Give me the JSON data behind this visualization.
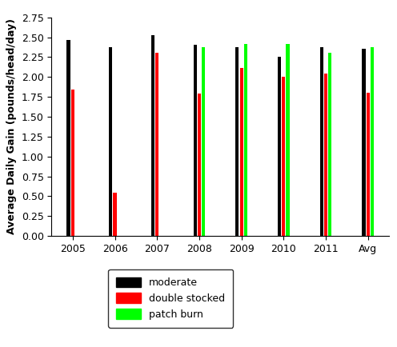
{
  "categories": [
    "2005",
    "2006",
    "2007",
    "2008",
    "2009",
    "2010",
    "2011",
    "Avg"
  ],
  "moderate": [
    2.47,
    2.37,
    2.53,
    2.41,
    2.37,
    2.25,
    2.37,
    2.35
  ],
  "double_stocked": [
    1.84,
    0.54,
    2.3,
    1.79,
    2.11,
    2.0,
    2.04,
    1.8
  ],
  "patch_burn": [
    null,
    null,
    null,
    2.37,
    2.42,
    2.42,
    2.3,
    2.37
  ],
  "bar_colors": [
    "#000000",
    "#ff0000",
    "#00ff00"
  ],
  "ylabel": "Average Daily Gain (pounds/head/day)",
  "ylim": [
    0.0,
    2.75
  ],
  "yticks": [
    0.0,
    0.25,
    0.5,
    0.75,
    1.0,
    1.25,
    1.5,
    1.75,
    2.0,
    2.25,
    2.5,
    2.75
  ],
  "legend_labels": [
    "moderate",
    "double stocked",
    "patch burn"
  ],
  "bar_width": 0.08,
  "bar_spacing": 0.1,
  "group_width": 1.0
}
